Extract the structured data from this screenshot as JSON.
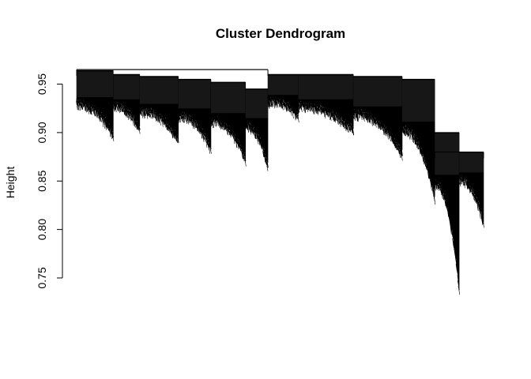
{
  "chart_data": {
    "type": "dendrogram",
    "title": "Cluster Dendrogram",
    "xlabel": "",
    "ylabel": "Height",
    "ylim": [
      0.75,
      0.97
    ],
    "yticks": [
      0.75,
      0.8,
      0.85,
      0.9,
      0.95
    ],
    "ytick_labels": [
      "0.75",
      "0.80",
      "0.85",
      "0.90",
      "0.95"
    ],
    "grid": false,
    "legend": "none",
    "line_color": "#000000",
    "root_height": 0.965,
    "clusters": [
      {
        "leaf_start": 0.0,
        "leaf_end": 0.09,
        "top": 0.964,
        "leaf_high": 0.932,
        "leaf_low": 0.9
      },
      {
        "leaf_start": 0.09,
        "leaf_end": 0.155,
        "top": 0.96,
        "leaf_high": 0.93,
        "leaf_low": 0.905
      },
      {
        "leaf_start": 0.155,
        "leaf_end": 0.25,
        "top": 0.958,
        "leaf_high": 0.925,
        "leaf_low": 0.895
      },
      {
        "leaf_start": 0.25,
        "leaf_end": 0.33,
        "top": 0.955,
        "leaf_high": 0.92,
        "leaf_low": 0.885
      },
      {
        "leaf_start": 0.33,
        "leaf_end": 0.415,
        "top": 0.952,
        "leaf_high": 0.915,
        "leaf_low": 0.875
      },
      {
        "leaf_start": 0.415,
        "leaf_end": 0.47,
        "top": 0.945,
        "leaf_high": 0.91,
        "leaf_low": 0.866
      },
      {
        "leaf_start": 0.47,
        "leaf_end": 0.545,
        "top": 0.96,
        "leaf_high": 0.935,
        "leaf_low": 0.92
      },
      {
        "leaf_start": 0.545,
        "leaf_end": 0.68,
        "top": 0.96,
        "leaf_high": 0.93,
        "leaf_low": 0.905
      },
      {
        "leaf_start": 0.68,
        "leaf_end": 0.8,
        "top": 0.958,
        "leaf_high": 0.922,
        "leaf_low": 0.88
      },
      {
        "leaf_start": 0.8,
        "leaf_end": 0.88,
        "top": 0.955,
        "leaf_high": 0.905,
        "leaf_low": 0.835
      },
      {
        "leaf_start": 0.88,
        "leaf_end": 0.94,
        "top": 0.9,
        "leaf_high": 0.85,
        "leaf_low": 0.74
      },
      {
        "leaf_start": 0.94,
        "leaf_end": 1.0,
        "top": 0.88,
        "leaf_high": 0.855,
        "leaf_low": 0.808
      }
    ],
    "root_merges": [
      {
        "left": 0.0,
        "right": 0.47,
        "height": 0.965
      },
      {
        "left": 0.88,
        "right": 1.0,
        "height": 0.88
      }
    ]
  }
}
